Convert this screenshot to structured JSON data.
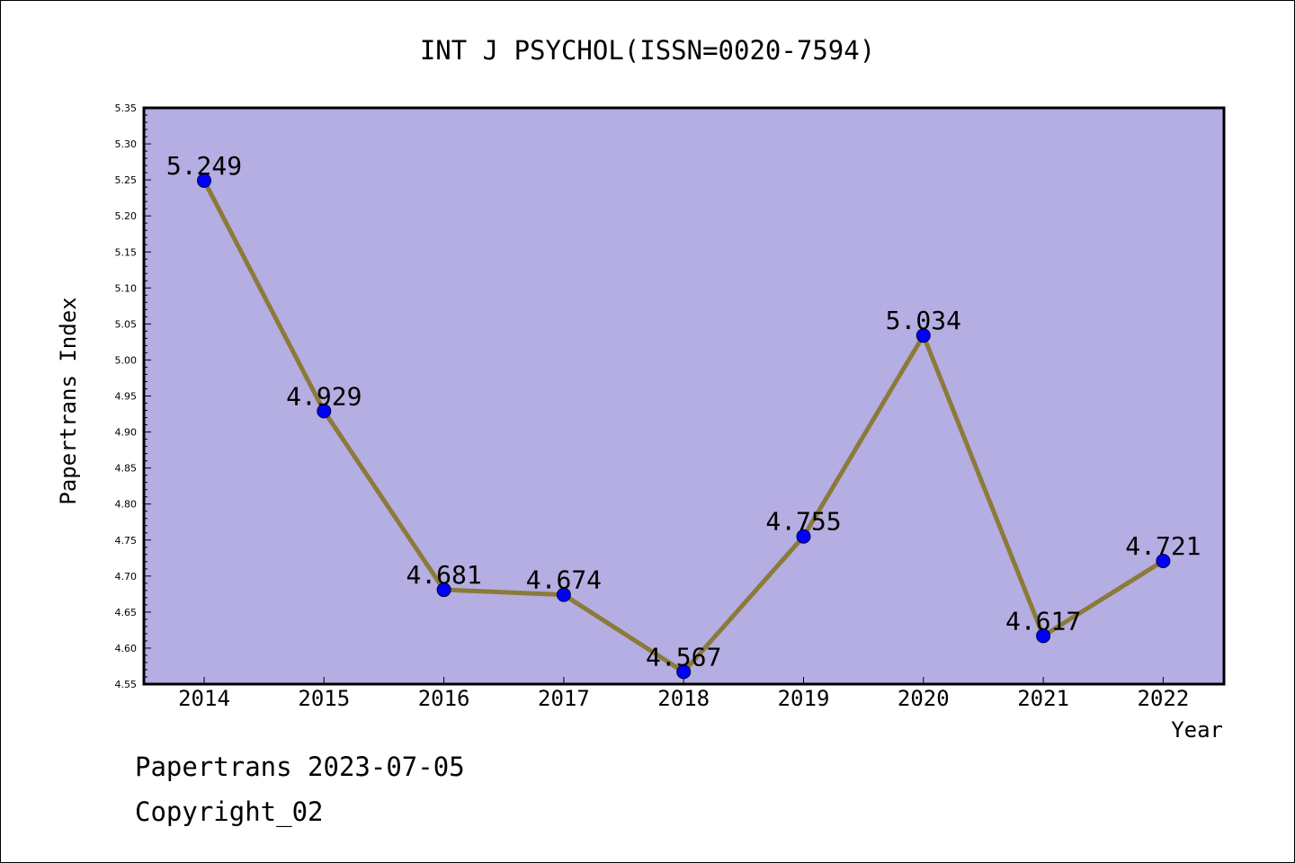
{
  "chart_data": {
    "type": "line",
    "title": "INT J PSYCHOL(ISSN=0020-7594)",
    "xlabel": "Year",
    "ylabel": "Papertrans Index",
    "categories": [
      "2014",
      "2015",
      "2016",
      "2017",
      "2018",
      "2019",
      "2020",
      "2021",
      "2022"
    ],
    "series": [
      {
        "values": [
          5.249,
          4.929,
          4.681,
          4.674,
          4.567,
          4.755,
          5.034,
          4.617,
          4.721
        ],
        "labels": [
          "5.249",
          "4.929",
          "4.681",
          "4.674",
          "4.567",
          "4.755",
          "5.034",
          "4.617",
          "4.721"
        ]
      }
    ],
    "ylim": [
      4.55,
      5.35
    ],
    "yticks": [
      "4.55",
      "4.60",
      "4.65",
      "4.70",
      "4.75",
      "4.80",
      "4.85",
      "4.90",
      "4.95",
      "5.00",
      "5.05",
      "5.10",
      "5.15",
      "5.20",
      "5.25",
      "5.30",
      "5.35"
    ],
    "grid": false,
    "colors": {
      "plot_background": "#b5aee2",
      "line": "#8b7a3a",
      "marker": "#0000ff"
    }
  },
  "footer": {
    "line1": "Papertrans 2023-07-05",
    "line2": "Copyright_02"
  }
}
